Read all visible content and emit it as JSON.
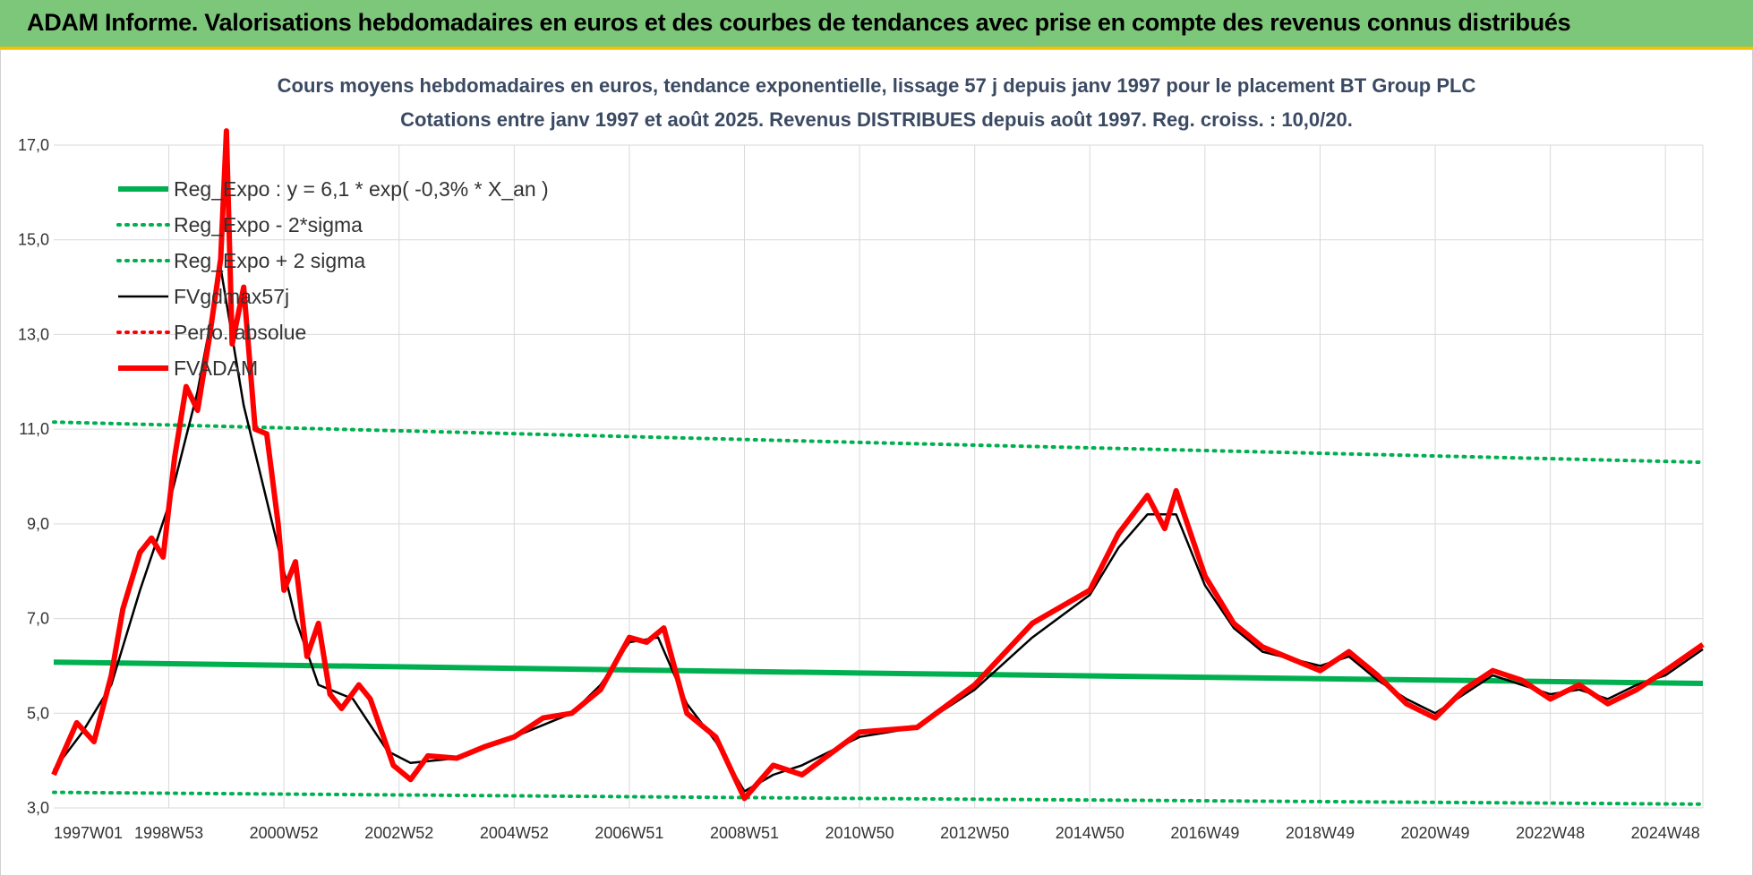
{
  "header": {
    "title": "ADAM Informe. Valorisations hebdomadaires en euros et des courbes de tendances avec prise en compte des revenus connus distribués"
  },
  "colors": {
    "header_bg": "#7dc77a",
    "green": "#00b050",
    "black": "#000000",
    "red": "#ff0000",
    "grid": "#d9d9d9",
    "title": "#3b4a63"
  },
  "chart_data": {
    "type": "line",
    "title": "Cours moyens hebdomadaires en euros, tendance exponentielle, lissage 57 j depuis janv 1997 pour le placement BT Group PLC",
    "subtitle": "Cotations entre janv 1997 et août 2025. Revenus DISTRIBUES depuis août 1997. Reg. croiss. : 10,0/20.",
    "xlabel": "",
    "ylabel": "",
    "ylim": [
      3.0,
      17.0
    ],
    "yticks": [
      "17,0",
      "15,0",
      "13,0",
      "11,0",
      "9,0",
      "7,0",
      "5,0",
      "3,0"
    ],
    "xlim": [
      1997.0,
      2025.65
    ],
    "xticks": [
      {
        "label": "1997W01",
        "x": 1997.0
      },
      {
        "label": "1998W53",
        "x": 1999.0
      },
      {
        "label": "2000W52",
        "x": 2001.0
      },
      {
        "label": "2002W52",
        "x": 2003.0
      },
      {
        "label": "2004W52",
        "x": 2005.0
      },
      {
        "label": "2006W51",
        "x": 2007.0
      },
      {
        "label": "2008W51",
        "x": 2009.0
      },
      {
        "label": "2010W50",
        "x": 2011.0
      },
      {
        "label": "2012W50",
        "x": 2013.0
      },
      {
        "label": "2014W50",
        "x": 2015.0
      },
      {
        "label": "2016W49",
        "x": 2017.0
      },
      {
        "label": "2018W49",
        "x": 2019.0
      },
      {
        "label": "2020W49",
        "x": 2021.0
      },
      {
        "label": "2022W48",
        "x": 2023.0
      },
      {
        "label": "2024W48",
        "x": 2025.0
      }
    ],
    "grid": true,
    "legend_position": "top-left",
    "series": [
      {
        "name": "Reg_Expo : y = 6,1 * exp( -0,3% *  X_an )",
        "style": "solid-thick",
        "color": "#00b050",
        "points": [
          [
            1997.0,
            6.08
          ],
          [
            2011.0,
            5.85
          ],
          [
            2025.65,
            5.63
          ]
        ]
      },
      {
        "name": "Reg_Expo - 2*sigma",
        "style": "dotted",
        "color": "#00b050",
        "points": [
          [
            1997.0,
            3.33
          ],
          [
            2011.0,
            3.2
          ],
          [
            2025.65,
            3.08
          ]
        ]
      },
      {
        "name": "Reg_Expo + 2 sigma",
        "style": "dotted",
        "color": "#00b050",
        "points": [
          [
            1997.0,
            11.15
          ],
          [
            2011.0,
            10.72
          ],
          [
            2025.65,
            10.3
          ]
        ]
      },
      {
        "name": "FVgdmax57j",
        "style": "solid",
        "color": "#000000",
        "points": [
          [
            1997.0,
            3.8
          ],
          [
            1997.5,
            4.6
          ],
          [
            1998.0,
            5.6
          ],
          [
            1998.5,
            7.6
          ],
          [
            1999.0,
            9.4
          ],
          [
            1999.5,
            11.8
          ],
          [
            1999.9,
            14.4
          ],
          [
            2000.3,
            11.5
          ],
          [
            2000.8,
            9.0
          ],
          [
            2001.2,
            7.0
          ],
          [
            2001.6,
            5.6
          ],
          [
            2002.2,
            5.3
          ],
          [
            2002.8,
            4.2
          ],
          [
            2003.2,
            3.95
          ],
          [
            2004.0,
            4.05
          ],
          [
            2005.0,
            4.5
          ],
          [
            2006.0,
            5.0
          ],
          [
            2006.5,
            5.6
          ],
          [
            2007.0,
            6.5
          ],
          [
            2007.5,
            6.6
          ],
          [
            2008.0,
            5.2
          ],
          [
            2008.5,
            4.4
          ],
          [
            2009.0,
            3.35
          ],
          [
            2009.5,
            3.7
          ],
          [
            2010.0,
            3.9
          ],
          [
            2011.0,
            4.5
          ],
          [
            2012.0,
            4.7
          ],
          [
            2012.5,
            5.1
          ],
          [
            2013.0,
            5.5
          ],
          [
            2014.0,
            6.6
          ],
          [
            2015.0,
            7.5
          ],
          [
            2015.5,
            8.5
          ],
          [
            2016.0,
            9.2
          ],
          [
            2016.5,
            9.2
          ],
          [
            2017.0,
            7.7
          ],
          [
            2017.5,
            6.8
          ],
          [
            2018.0,
            6.3
          ],
          [
            2019.0,
            6.0
          ],
          [
            2019.5,
            6.2
          ],
          [
            2020.0,
            5.7
          ],
          [
            2020.5,
            5.3
          ],
          [
            2021.0,
            5.0
          ],
          [
            2021.5,
            5.4
          ],
          [
            2022.0,
            5.8
          ],
          [
            2023.0,
            5.4
          ],
          [
            2023.5,
            5.5
          ],
          [
            2024.0,
            5.3
          ],
          [
            2024.5,
            5.6
          ],
          [
            2025.0,
            5.8
          ],
          [
            2025.65,
            6.35
          ]
        ]
      },
      {
        "name": "Perfo. absolue",
        "style": "dotted",
        "color": "#ff0000",
        "points": []
      },
      {
        "name": "FVADAM",
        "style": "solid-thick",
        "color": "#ff0000",
        "points": [
          [
            1997.0,
            3.7
          ],
          [
            1997.4,
            4.8
          ],
          [
            1997.7,
            4.4
          ],
          [
            1998.0,
            5.8
          ],
          [
            1998.2,
            7.2
          ],
          [
            1998.5,
            8.4
          ],
          [
            1998.7,
            8.7
          ],
          [
            1998.9,
            8.3
          ],
          [
            1999.1,
            10.4
          ],
          [
            1999.3,
            11.9
          ],
          [
            1999.5,
            11.4
          ],
          [
            1999.7,
            12.9
          ],
          [
            1999.9,
            14.6
          ],
          [
            2000.0,
            17.3
          ],
          [
            2000.1,
            12.8
          ],
          [
            2000.3,
            14.0
          ],
          [
            2000.5,
            11.0
          ],
          [
            2000.7,
            10.9
          ],
          [
            2000.9,
            9.0
          ],
          [
            2001.0,
            7.6
          ],
          [
            2001.2,
            8.2
          ],
          [
            2001.4,
            6.2
          ],
          [
            2001.6,
            6.9
          ],
          [
            2001.8,
            5.4
          ],
          [
            2002.0,
            5.1
          ],
          [
            2002.3,
            5.6
          ],
          [
            2002.5,
            5.3
          ],
          [
            2002.7,
            4.6
          ],
          [
            2002.9,
            3.9
          ],
          [
            2003.2,
            3.6
          ],
          [
            2003.5,
            4.1
          ],
          [
            2004.0,
            4.05
          ],
          [
            2004.5,
            4.3
          ],
          [
            2005.0,
            4.5
          ],
          [
            2005.5,
            4.9
          ],
          [
            2006.0,
            5.0
          ],
          [
            2006.5,
            5.5
          ],
          [
            2007.0,
            6.6
          ],
          [
            2007.3,
            6.5
          ],
          [
            2007.6,
            6.8
          ],
          [
            2008.0,
            5.0
          ],
          [
            2008.5,
            4.5
          ],
          [
            2009.0,
            3.2
          ],
          [
            2009.5,
            3.9
          ],
          [
            2010.0,
            3.7
          ],
          [
            2011.0,
            4.6
          ],
          [
            2012.0,
            4.7
          ],
          [
            2013.0,
            5.6
          ],
          [
            2014.0,
            6.9
          ],
          [
            2015.0,
            7.6
          ],
          [
            2015.5,
            8.8
          ],
          [
            2016.0,
            9.6
          ],
          [
            2016.3,
            8.9
          ],
          [
            2016.5,
            9.7
          ],
          [
            2017.0,
            7.9
          ],
          [
            2017.5,
            6.9
          ],
          [
            2018.0,
            6.4
          ],
          [
            2019.0,
            5.9
          ],
          [
            2019.5,
            6.3
          ],
          [
            2020.0,
            5.8
          ],
          [
            2020.5,
            5.2
          ],
          [
            2021.0,
            4.9
          ],
          [
            2021.5,
            5.5
          ],
          [
            2022.0,
            5.9
          ],
          [
            2022.5,
            5.7
          ],
          [
            2023.0,
            5.3
          ],
          [
            2023.5,
            5.6
          ],
          [
            2024.0,
            5.2
          ],
          [
            2024.5,
            5.5
          ],
          [
            2025.0,
            5.9
          ],
          [
            2025.65,
            6.45
          ]
        ]
      }
    ]
  }
}
